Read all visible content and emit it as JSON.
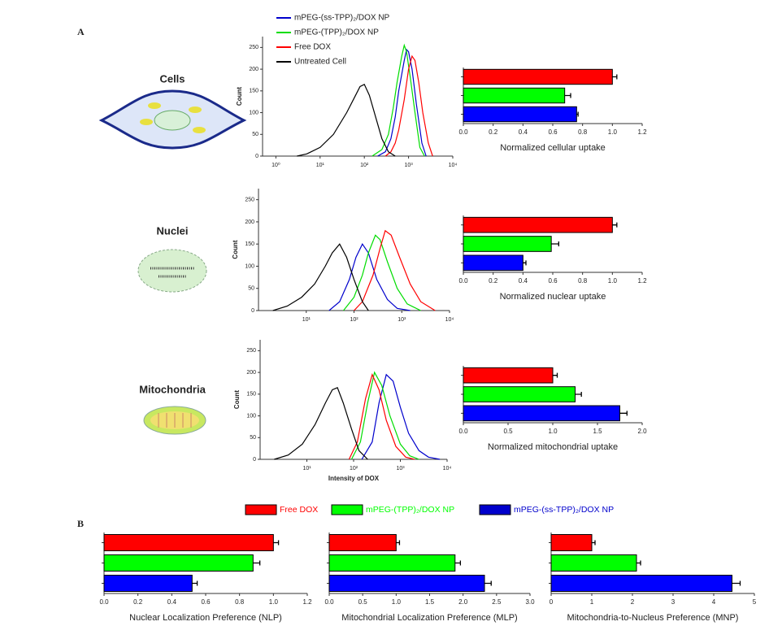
{
  "panel_labels": [
    "A",
    "B"
  ],
  "row_labels": [
    "Cells",
    "Nuclei",
    "Mitochondria"
  ],
  "legend": [
    {
      "name": "Free DOX",
      "color": "#ff0000"
    },
    {
      "name": "mPEG-(TPP)₂/DOX NP",
      "color": "#00ff00"
    },
    {
      "name": "mPEG-(ss-TPP)₂/DOX NP",
      "color": "#0000cc"
    }
  ],
  "chart_data": [
    {
      "type": "line",
      "xscale": "log",
      "ylabel": "Count",
      "legend": "top",
      "xlim": [
        0.5,
        10000
      ],
      "xticks": [
        {
          "value": 1,
          "label": "10⁰"
        },
        {
          "value": 10,
          "label": "10¹"
        },
        {
          "value": 100,
          "label": "10²"
        },
        {
          "value": 1000,
          "label": "10³"
        },
        {
          "value": 10000,
          "label": "10⁴"
        }
      ],
      "ylim": [
        0,
        275
      ],
      "yticks": [
        0,
        50,
        100,
        150,
        200,
        250
      ],
      "series": [
        {
          "name": "mPEG-(ss-TPP)₂/DOX NP",
          "color": "#0000cc",
          "x": [
            200,
            300,
            400,
            500,
            600,
            800,
            900,
            1000,
            1200,
            1500,
            2000,
            2500
          ],
          "values": [
            0,
            10,
            40,
            90,
            150,
            220,
            245,
            240,
            200,
            120,
            30,
            0
          ]
        },
        {
          "name": "mPEG-(TPP)₂/DOX NP",
          "color": "#00dd00",
          "x": [
            150,
            250,
            350,
            450,
            550,
            700,
            800,
            900,
            1100,
            1400,
            1800,
            2300
          ],
          "values": [
            0,
            15,
            50,
            110,
            170,
            230,
            255,
            240,
            180,
            100,
            20,
            0
          ]
        },
        {
          "name": "Free DOX",
          "color": "#ff0000",
          "x": [
            300,
            400,
            500,
            600,
            800,
            1000,
            1200,
            1400,
            1700,
            2100,
            2800,
            3500
          ],
          "values": [
            0,
            10,
            30,
            60,
            130,
            200,
            230,
            220,
            170,
            100,
            30,
            0
          ]
        },
        {
          "name": "Untreated Cell",
          "color": "#000000",
          "x": [
            3,
            5,
            10,
            20,
            40,
            60,
            80,
            100,
            130,
            180,
            250,
            350,
            500
          ],
          "values": [
            0,
            5,
            20,
            50,
            100,
            135,
            160,
            165,
            140,
            90,
            40,
            10,
            0
          ]
        }
      ]
    },
    {
      "type": "line",
      "xscale": "log",
      "ylabel": "Count",
      "xlim": [
        1,
        10000
      ],
      "xticks": [
        {
          "value": 10,
          "label": "10¹"
        },
        {
          "value": 100,
          "label": "10²"
        },
        {
          "value": 1000,
          "label": "10³"
        },
        {
          "value": 10000,
          "label": "10⁴"
        }
      ],
      "ylim": [
        0,
        275
      ],
      "yticks": [
        0,
        50,
        100,
        150,
        200,
        250
      ],
      "series": [
        {
          "color": "#0000cc",
          "x": [
            30,
            50,
            80,
            110,
            150,
            200,
            300,
            500,
            800,
            1500
          ],
          "values": [
            0,
            20,
            70,
            120,
            150,
            130,
            70,
            25,
            5,
            0
          ]
        },
        {
          "color": "#00dd00",
          "x": [
            60,
            100,
            150,
            200,
            280,
            350,
            500,
            800,
            1300,
            2500
          ],
          "values": [
            0,
            30,
            80,
            130,
            170,
            160,
            110,
            50,
            15,
            0
          ]
        },
        {
          "color": "#ff0000",
          "x": [
            100,
            150,
            250,
            350,
            450,
            600,
            900,
            1500,
            2500,
            5000
          ],
          "values": [
            0,
            20,
            80,
            140,
            180,
            170,
            120,
            60,
            20,
            0
          ]
        },
        {
          "color": "#000000",
          "x": [
            2,
            4,
            8,
            15,
            25,
            35,
            50,
            70,
            100,
            150,
            200
          ],
          "values": [
            0,
            10,
            30,
            60,
            100,
            130,
            150,
            120,
            70,
            20,
            0
          ]
        }
      ]
    },
    {
      "type": "line",
      "xscale": "log",
      "ylabel": "Count",
      "xlabel": "Intensity of DOX",
      "xlim": [
        1,
        10000
      ],
      "xticks": [
        {
          "value": 10,
          "label": "10¹"
        },
        {
          "value": 100,
          "label": "10²"
        },
        {
          "value": 1000,
          "label": "10³"
        },
        {
          "value": 10000,
          "label": "10⁴"
        }
      ],
      "ylim": [
        0,
        275
      ],
      "yticks": [
        0,
        50,
        100,
        150,
        200,
        250
      ],
      "series": [
        {
          "color": "#0000cc",
          "x": [
            150,
            250,
            350,
            500,
            700,
            1000,
            1500,
            2500,
            4000,
            7000
          ],
          "values": [
            0,
            40,
            130,
            195,
            180,
            120,
            60,
            20,
            5,
            0
          ]
        },
        {
          "color": "#00dd00",
          "x": [
            90,
            140,
            200,
            280,
            400,
            600,
            1000,
            1600,
            2500
          ],
          "values": [
            0,
            40,
            130,
            200,
            170,
            100,
            35,
            8,
            0
          ]
        },
        {
          "color": "#ff0000",
          "x": [
            80,
            120,
            180,
            250,
            350,
            500,
            800,
            1300,
            2000
          ],
          "values": [
            0,
            40,
            140,
            195,
            160,
            90,
            30,
            5,
            0
          ]
        },
        {
          "color": "#000000",
          "x": [
            2,
            4,
            8,
            15,
            25,
            35,
            45,
            60,
            90,
            130,
            200
          ],
          "values": [
            0,
            10,
            35,
            80,
            130,
            160,
            165,
            130,
            70,
            20,
            0
          ]
        }
      ]
    },
    {
      "type": "bar",
      "orientation": "horizontal",
      "xlabel": "Normalized cellular uptake",
      "xlim": [
        0,
        1.2
      ],
      "xticks": [
        {
          "value": 0,
          "label": "0.0"
        },
        0.2,
        0.4,
        0.6,
        0.8,
        {
          "value": 1,
          "label": "1.0"
        },
        1.2
      ],
      "values": [
        1.0,
        0.68,
        0.76
      ],
      "errors": [
        0.03,
        0.04,
        0.01
      ],
      "colors": [
        "#ff0000",
        "#00ff00",
        "#0000ff"
      ]
    },
    {
      "type": "bar",
      "orientation": "horizontal",
      "xlabel": "Normalized nuclear uptake",
      "xlim": [
        0,
        1.2
      ],
      "xticks": [
        {
          "value": 0,
          "label": "0.0"
        },
        0.2,
        0.4,
        0.6,
        0.8,
        {
          "value": 1,
          "label": "1.0"
        },
        1.2
      ],
      "values": [
        1.0,
        0.59,
        0.4
      ],
      "errors": [
        0.03,
        0.05,
        0.02
      ],
      "colors": [
        "#ff0000",
        "#00ff00",
        "#0000ff"
      ]
    },
    {
      "type": "bar",
      "orientation": "horizontal",
      "xlabel": "Normalized mitochondrial uptake",
      "xlim": [
        0,
        2
      ],
      "xticks": [
        {
          "value": 0,
          "label": "0.0"
        },
        0.5,
        {
          "value": 1,
          "label": "1.0"
        },
        1.5,
        {
          "value": 2,
          "label": "2.0"
        }
      ],
      "values": [
        1.0,
        1.25,
        1.75
      ],
      "errors": [
        0.05,
        0.07,
        0.08
      ],
      "colors": [
        "#ff0000",
        "#00ff00",
        "#0000ff"
      ]
    },
    {
      "type": "bar",
      "orientation": "horizontal",
      "xlabel": "Nuclear Localization Preference (NLP)",
      "xlim": [
        0,
        1.2
      ],
      "xticks": [
        {
          "value": 0,
          "label": "0.0"
        },
        0.2,
        0.4,
        0.6,
        0.8,
        {
          "value": 1,
          "label": "1.0"
        },
        1.2
      ],
      "values": [
        1.0,
        0.88,
        0.52
      ],
      "errors": [
        0.03,
        0.04,
        0.03
      ],
      "colors": [
        "#ff0000",
        "#00ff00",
        "#0000ff"
      ]
    },
    {
      "type": "bar",
      "orientation": "horizontal",
      "xlabel": "Mitochondrial Localization Preference (MLP)",
      "xlim": [
        0,
        3
      ],
      "xticks": [
        {
          "value": 0,
          "label": "0.0"
        },
        0.5,
        {
          "value": 1,
          "label": "1.0"
        },
        1.5,
        {
          "value": 2,
          "label": "2.0"
        },
        2.5,
        {
          "value": 3,
          "label": "3.0"
        }
      ],
      "values": [
        1.0,
        1.88,
        2.32
      ],
      "errors": [
        0.05,
        0.08,
        0.1
      ],
      "colors": [
        "#ff0000",
        "#00ff00",
        "#0000ff"
      ]
    },
    {
      "type": "bar",
      "orientation": "horizontal",
      "xlabel": "Mitochondria-to-Nucleus Preference (MNP)",
      "xlim": [
        0,
        5
      ],
      "xticks": [
        0,
        1,
        2,
        3,
        4,
        5
      ],
      "values": [
        1.0,
        2.1,
        4.45
      ],
      "errors": [
        0.08,
        0.1,
        0.2
      ],
      "colors": [
        "#ff0000",
        "#00ff00",
        "#0000ff"
      ]
    }
  ]
}
